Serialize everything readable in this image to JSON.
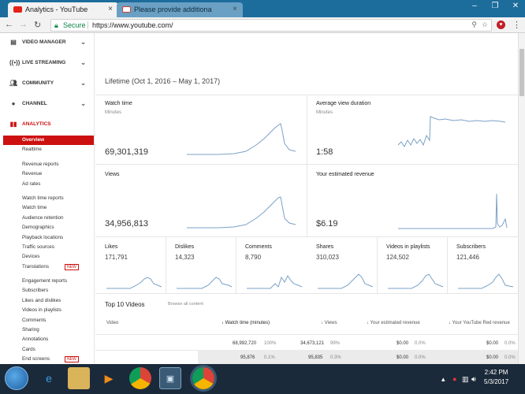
{
  "browser": {
    "tabs": [
      {
        "title": "Analytics - YouTube",
        "active": true
      },
      {
        "title": "Please provide additiona",
        "active": false
      }
    ],
    "secure_label": "Secure",
    "url": "https://www.youtube.com/"
  },
  "sidebar": {
    "sections": [
      {
        "label": "VIDEO MANAGER",
        "icon": "video-manager-icon"
      },
      {
        "label": "LIVE STREAMING",
        "icon": "live-streaming-icon"
      },
      {
        "label": "COMMUNITY",
        "icon": "community-icon"
      },
      {
        "label": "CHANNEL",
        "icon": "channel-icon"
      },
      {
        "label": "ANALYTICS",
        "icon": "analytics-icon"
      }
    ],
    "analytics_items": [
      [
        "Overview",
        "Realtime"
      ],
      [
        "Revenue reports",
        "Revenue",
        "Ad rates"
      ],
      [
        "Watch time reports",
        "Watch time",
        "Audience retention",
        "Demographics",
        "Playback locations",
        "Traffic sources",
        "Devices",
        "Translations"
      ],
      [
        "Engagement reports",
        "Subscribers",
        "Likes and dislikes",
        "Videos in playlists",
        "Comments",
        "Sharing",
        "Annotations",
        "Cards",
        "End screens"
      ]
    ],
    "new_badge": "NEW"
  },
  "main": {
    "range": "Lifetime (Oct 1, 2016 – May 1, 2017)",
    "cards": {
      "watch_time": {
        "title": "Watch time",
        "unit": "Minutes",
        "value": "69,301,319"
      },
      "avg_view": {
        "title": "Average view duration",
        "unit": "Minutes",
        "value": "1:58"
      },
      "views": {
        "title": "Views",
        "value": "34,956,813"
      },
      "revenue": {
        "title": "Your estimated revenue",
        "value": "$6.19"
      }
    },
    "small_cards": [
      {
        "title": "Likes",
        "value": "171,791"
      },
      {
        "title": "Dislikes",
        "value": "14,323"
      },
      {
        "title": "Comments",
        "value": "8,790"
      },
      {
        "title": "Shares",
        "value": "310,023"
      },
      {
        "title": "Videos in playlists",
        "value": "124,502"
      },
      {
        "title": "Subscribers",
        "value": "121,446"
      }
    ],
    "top10": {
      "title": "Top 10 Videos",
      "browse": "Browse all content",
      "headers": [
        "Video",
        "↓ Watch time (minutes)",
        "↓ Views",
        "↓ Your estimated revenue",
        "↓ Your YouTube Red revenue"
      ],
      "rows": [
        {
          "watch": "68,992,720",
          "watch_pct": "100%",
          "views": "34,673,121",
          "views_pct": "99%",
          "rev": "$0.00",
          "rev_pct": "0.0%",
          "red": "$0.00",
          "red_pct": "0.0%"
        },
        {
          "watch": "95,876",
          "watch_pct": "0.1%",
          "views": "95,835",
          "views_pct": "0.3%",
          "rev": "$0.00",
          "rev_pct": "0.0%",
          "red": "$0.00",
          "red_pct": "0.0%"
        }
      ]
    }
  },
  "taskbar": {
    "time": "2:42 PM",
    "date": "5/3/2017"
  },
  "colors": {
    "accent": "#cc1010",
    "spark": "#7ba1c7",
    "tabstrip": "#1c6c9c"
  }
}
